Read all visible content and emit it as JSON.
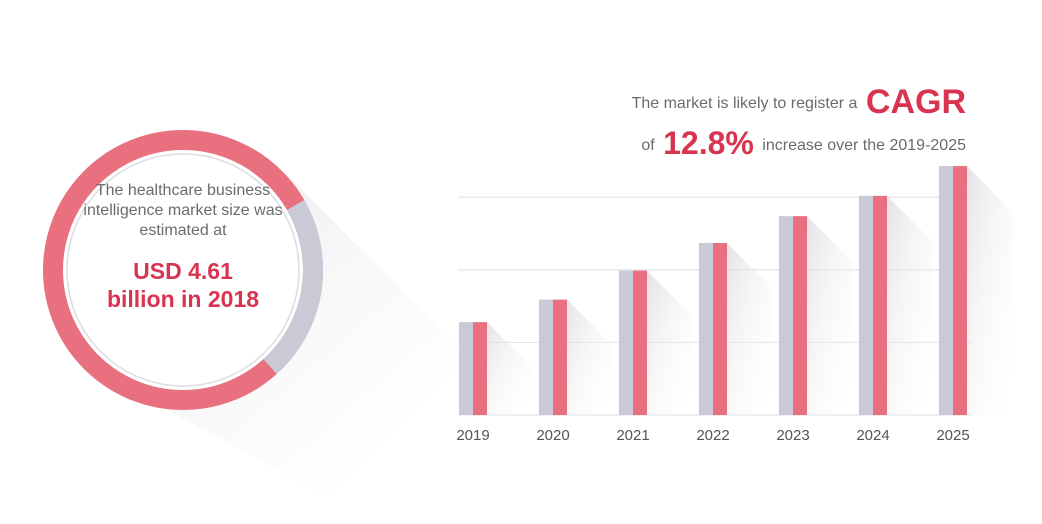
{
  "circle": {
    "text": [
      "The healthcare business",
      "intelligence market size was",
      "estimated at"
    ],
    "highlight": [
      "USD 4.61",
      "billion in 2018"
    ]
  },
  "chart_data": {
    "type": "bar",
    "headline": {
      "line1": "The market is likely to register a",
      "cagr": "CAGR",
      "of": "of",
      "rate": "12.8%",
      "line2": "increase over the 2019-2025"
    },
    "categories": [
      "2019",
      "2020",
      "2021",
      "2022",
      "2023",
      "2024",
      "2025"
    ],
    "values": [
      1.28,
      1.59,
      1.99,
      2.37,
      2.74,
      3.02,
      3.43
    ],
    "color": "#e8707f",
    "shade_color": "#c9cad6",
    "ylim": [
      0,
      3.5
    ],
    "gridlines": [
      0,
      1,
      2,
      3
    ],
    "grid": true
  }
}
